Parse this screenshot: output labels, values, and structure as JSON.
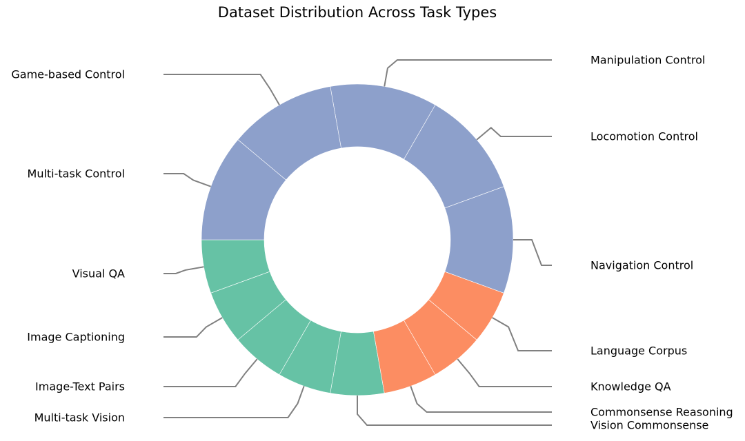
{
  "chart_data": {
    "type": "pie",
    "variant": "donut",
    "title": "Dataset Distribution Across Task Types",
    "legend": "none",
    "start_angle_deg": 180,
    "direction": "counterclockwise",
    "slices": [
      {
        "label": "Visual QA",
        "value": 1,
        "color": "#66c2a5"
      },
      {
        "label": "Image Captioning",
        "value": 1,
        "color": "#66c2a5"
      },
      {
        "label": "Image-Text Pairs",
        "value": 1,
        "color": "#66c2a5"
      },
      {
        "label": "Multi-task Vision",
        "value": 1,
        "color": "#66c2a5"
      },
      {
        "label": "Vision Commonsense",
        "value": 1,
        "color": "#66c2a5"
      },
      {
        "label": "Commonsense Reasoning",
        "value": 1,
        "color": "#fc8d62"
      },
      {
        "label": "Knowledge QA",
        "value": 1,
        "color": "#fc8d62"
      },
      {
        "label": "Language Corpus",
        "value": 1,
        "color": "#fc8d62"
      },
      {
        "label": "Navigation Control",
        "value": 2,
        "color": "#8da0cb"
      },
      {
        "label": "Locomotion Control",
        "value": 2,
        "color": "#8da0cb"
      },
      {
        "label": "Manipulation Control",
        "value": 2,
        "color": "#8da0cb"
      },
      {
        "label": "Game-based Control",
        "value": 2,
        "color": "#8da0cb"
      },
      {
        "label": "Multi-task Control",
        "value": 2,
        "color": "#8da0cb"
      }
    ],
    "label_positions": {
      "Visual QA": "left",
      "Image Captioning": "left",
      "Image-Text Pairs": "left",
      "Multi-task Vision": "left",
      "Vision Commonsense": "right",
      "Commonsense Reasoning": "right",
      "Knowledge QA": "right",
      "Language Corpus": "right",
      "Navigation Control": "right",
      "Locomotion Control": "right",
      "Manipulation Control": "right",
      "Game-based Control": "left",
      "Multi-task Control": "left"
    },
    "leader_line_color": "#808080"
  }
}
